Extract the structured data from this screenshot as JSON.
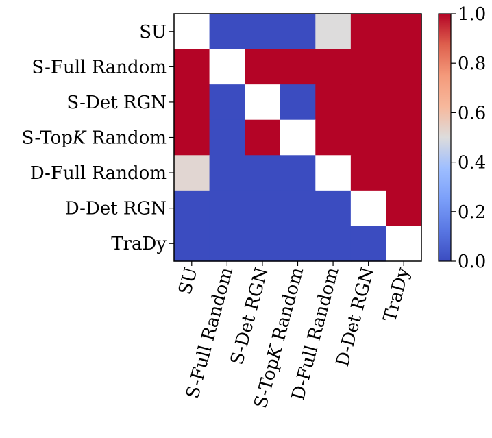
{
  "chart_data": {
    "type": "heatmap",
    "title": "",
    "xlabel": "",
    "ylabel": "",
    "rows": [
      "SU",
      "S-Full Random",
      "S-Det RGN",
      "S-TopK Random",
      "D-Full Random",
      "D-Det RGN",
      "TraDy"
    ],
    "columns": [
      "SU",
      "S-Full Random",
      "S-Det RGN",
      "S-TopK Random",
      "D-Full Random",
      "D-Det RGN",
      "TraDy"
    ],
    "values": [
      [
        null,
        0,
        0,
        0,
        0.5,
        1,
        1
      ],
      [
        1,
        null,
        1,
        1,
        1,
        1,
        1
      ],
      [
        1,
        0,
        null,
        0,
        1,
        1,
        1
      ],
      [
        1,
        0,
        1,
        null,
        1,
        1,
        1
      ],
      [
        0.52,
        0,
        0,
        0,
        null,
        1,
        1
      ],
      [
        0,
        0,
        0,
        0,
        0,
        null,
        1
      ],
      [
        0,
        0,
        0,
        0,
        0,
        0,
        null
      ]
    ],
    "colormap": "coolwarm",
    "diagonal": "blank (white)",
    "colorbar": {
      "range": [
        0.0,
        1.0
      ],
      "ticks": [
        "0.0",
        "0.2",
        "0.4",
        "0.6",
        "0.8",
        "1.0"
      ]
    }
  }
}
